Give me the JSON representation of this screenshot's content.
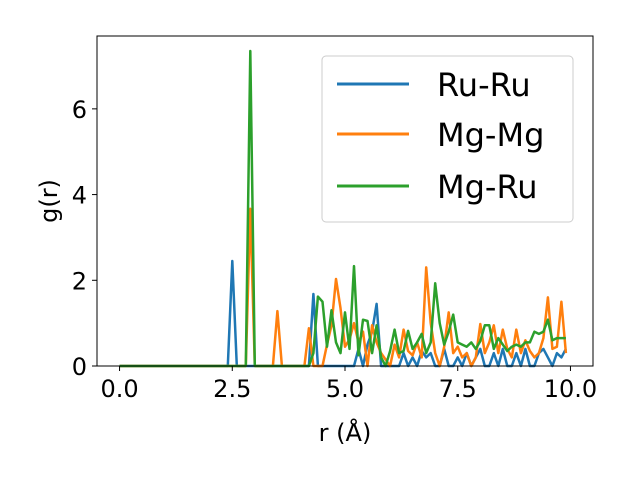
{
  "chart_data": {
    "type": "line",
    "title": "",
    "xlabel": "r (Å)",
    "ylabel": "g(r)",
    "xlim": [
      -0.5,
      10.5
    ],
    "ylim": [
      0,
      7.7
    ],
    "xticks": [
      0.0,
      2.5,
      5.0,
      7.5,
      10.0
    ],
    "xtick_labels": [
      "0.0",
      "2.5",
      "5.0",
      "7.5",
      "10.0"
    ],
    "yticks": [
      0,
      2,
      4,
      6
    ],
    "ytick_labels": [
      "0",
      "2",
      "4",
      "6"
    ],
    "grid": false,
    "legend_position": "top-right",
    "colors": {
      "Ru-Ru": "#1f77b4",
      "Mg-Mg": "#ff7f0e",
      "Mg-Ru": "#2ca02c"
    },
    "series": [
      {
        "name": "Ru-Ru",
        "x": [
          0.0,
          2.4,
          2.5,
          2.6,
          4.1,
          4.2,
          4.3,
          4.4,
          4.5,
          4.6,
          5.2,
          5.3,
          5.4,
          5.5,
          5.6,
          5.7,
          5.8,
          5.9,
          6.1,
          6.2,
          6.3,
          6.4,
          6.5,
          6.6,
          6.7,
          6.8,
          6.9,
          7.0,
          7.1,
          7.2,
          7.3,
          7.4,
          7.5,
          7.6,
          7.7,
          7.8,
          7.9,
          8.0,
          8.1,
          8.2,
          8.3,
          8.4,
          8.5,
          8.6,
          8.7,
          8.8,
          8.9,
          9.0,
          9.1,
          9.2,
          9.3,
          9.4,
          9.5,
          9.6,
          9.7,
          9.8,
          9.9
        ],
        "y": [
          0,
          0,
          2.45,
          0,
          0,
          0,
          1.68,
          0,
          0,
          0,
          0,
          0.4,
          0,
          0.5,
          0.8,
          1.45,
          0,
          0,
          0,
          0,
          0.3,
          0,
          0.2,
          0,
          0.35,
          0.2,
          0.3,
          0,
          0,
          0.4,
          0,
          0,
          0.2,
          0,
          0.3,
          0,
          0.2,
          0.4,
          0,
          0,
          0.3,
          0,
          0.4,
          0,
          0,
          0.3,
          0,
          0.4,
          0,
          0,
          0.3,
          0.4,
          0.2,
          0,
          0.3,
          0.2,
          0.4
        ]
      },
      {
        "name": "Mg-Mg",
        "x": [
          0.0,
          2.8,
          2.9,
          3.0,
          3.4,
          3.5,
          3.6,
          4.1,
          4.2,
          4.3,
          4.5,
          4.6,
          4.7,
          4.8,
          4.9,
          5.0,
          5.1,
          5.2,
          5.3,
          5.4,
          5.5,
          5.6,
          5.7,
          5.8,
          6.0,
          6.1,
          6.2,
          6.3,
          6.4,
          6.5,
          6.6,
          6.7,
          6.8,
          6.9,
          7.0,
          7.1,
          7.2,
          7.3,
          7.4,
          7.5,
          7.6,
          7.7,
          7.8,
          7.9,
          8.0,
          8.1,
          8.2,
          8.3,
          8.4,
          8.5,
          8.6,
          8.7,
          8.8,
          8.9,
          9.0,
          9.1,
          9.2,
          9.3,
          9.4,
          9.5,
          9.6,
          9.7,
          9.8,
          9.9
        ],
        "y": [
          0,
          0,
          3.67,
          0,
          0,
          1.28,
          0,
          0,
          0.88,
          0,
          0,
          0.5,
          0.95,
          2.03,
          1.35,
          0.45,
          0.62,
          1.0,
          0.55,
          0.8,
          0,
          0.95,
          0.55,
          0.3,
          0,
          0.5,
          0.2,
          0.85,
          0.35,
          0.25,
          0.55,
          0.2,
          2.3,
          1.0,
          0.3,
          0,
          0.45,
          1.25,
          0.3,
          0.45,
          0.2,
          0.3,
          0,
          0.2,
          0.98,
          0.3,
          0.55,
          0.95,
          0.3,
          0.85,
          0.4,
          0.2,
          0.85,
          0.3,
          0.6,
          0.35,
          0.2,
          0.3,
          0.65,
          1.6,
          0.4,
          0.45,
          1.5,
          0.3
        ]
      },
      {
        "name": "Mg-Ru",
        "x": [
          0.0,
          2.8,
          2.9,
          3.0,
          4.2,
          4.3,
          4.4,
          4.5,
          4.6,
          4.7,
          4.8,
          4.9,
          5.0,
          5.1,
          5.2,
          5.3,
          5.4,
          5.5,
          5.6,
          5.7,
          5.8,
          5.9,
          6.0,
          6.1,
          6.2,
          6.3,
          6.4,
          6.5,
          6.6,
          6.7,
          6.8,
          6.9,
          7.0,
          7.1,
          7.2,
          7.3,
          7.4,
          7.5,
          7.6,
          7.7,
          7.8,
          7.9,
          8.0,
          8.1,
          8.2,
          8.3,
          8.4,
          8.5,
          8.6,
          8.7,
          8.8,
          8.9,
          9.0,
          9.1,
          9.2,
          9.3,
          9.4,
          9.5,
          9.6,
          9.7,
          9.8,
          9.9
        ],
        "y": [
          0,
          0,
          7.35,
          0,
          0,
          0.3,
          1.62,
          1.5,
          0.45,
          1.3,
          0.55,
          0.3,
          1.25,
          0.4,
          2.33,
          0.25,
          1.08,
          1.05,
          0.3,
          0.95,
          0.2,
          0,
          0.35,
          0.85,
          0.3,
          0.35,
          0.82,
          0.4,
          0.55,
          0.75,
          0.3,
          0.55,
          1.93,
          1.0,
          0.5,
          0.8,
          1.2,
          0.55,
          0.5,
          0.45,
          0.55,
          0.4,
          0.58,
          0.95,
          0.95,
          0.4,
          0.65,
          0.5,
          0.35,
          0.45,
          0.5,
          0.45,
          0.55,
          0.55,
          0.8,
          0.75,
          0.8,
          1.08,
          0.6,
          0.65,
          0.65,
          0.65
        ]
      }
    ]
  }
}
